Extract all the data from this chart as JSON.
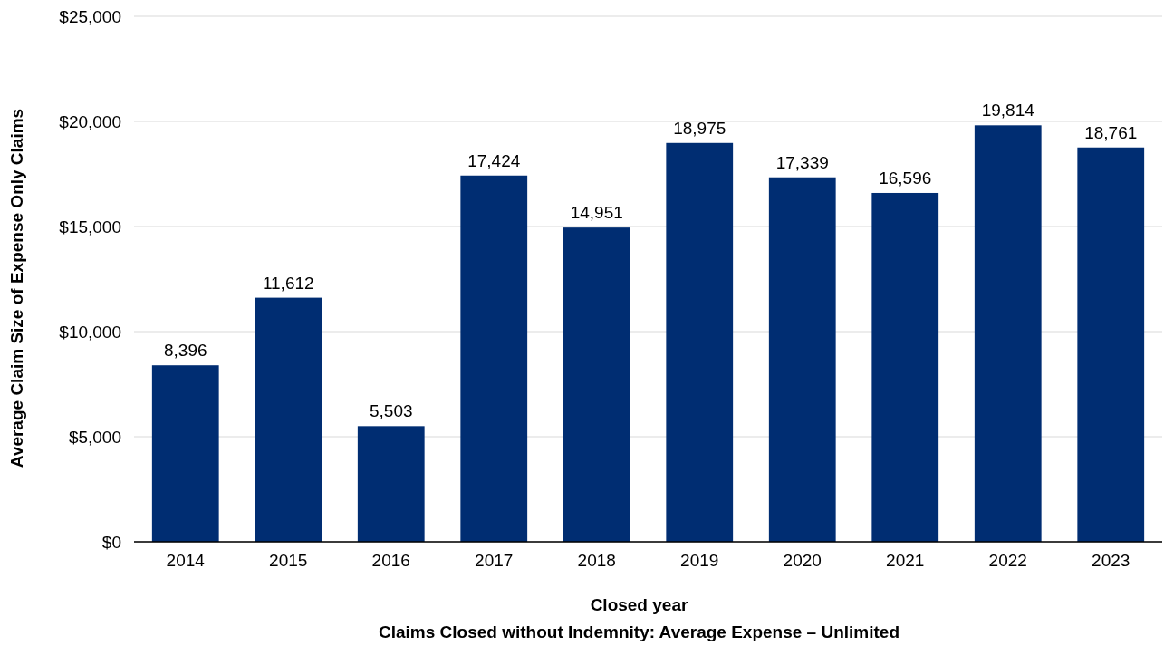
{
  "chart_data": {
    "type": "bar",
    "xlabel": "Closed year",
    "ylabel": "Average Claim Size of Expense Only Claims",
    "annotations": [
      "Claims Closed without Indemnity: Average Expense – Unlimited"
    ],
    "categories": [
      "2014",
      "2015",
      "2016",
      "2017",
      "2018",
      "2019",
      "2020",
      "2021",
      "2022",
      "2023"
    ],
    "values": [
      8396,
      11612,
      5503,
      17424,
      14951,
      18975,
      17339,
      16596,
      19814,
      18761
    ],
    "color": "#002d72",
    "ylim": [
      0,
      25000
    ],
    "yticks": [
      {
        "value": 0,
        "label": "$0"
      },
      {
        "value": 5000,
        "label": "$5,000"
      },
      {
        "value": 10000,
        "label": "$10,000"
      },
      {
        "value": 15000,
        "label": "$15,000"
      },
      {
        "value": 20000,
        "label": "$20,000"
      },
      {
        "value": 25000,
        "label": "$25,000"
      }
    ],
    "value_labels": [
      "8,396",
      "11,612",
      "5,503",
      "17,424",
      "14,951",
      "18,975",
      "17,339",
      "16,596",
      "19,814",
      "18,761"
    ],
    "grid": "y"
  }
}
